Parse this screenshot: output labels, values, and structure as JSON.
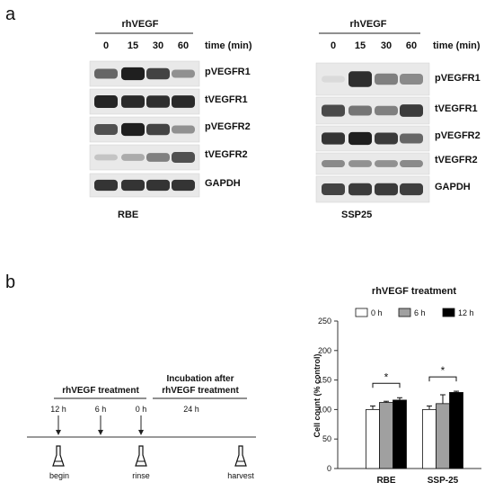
{
  "panel_a": {
    "label": "a",
    "blots": [
      {
        "treatment": "rhVEGF",
        "times": [
          "0",
          "15",
          "30",
          "60"
        ],
        "time_label": "time (min)",
        "cell_line": "RBE",
        "rows": [
          {
            "label": "pVEGFR1",
            "intensity": [
              0.62,
              0.95,
              0.78,
              0.42
            ]
          },
          {
            "label": "tVEGFR1",
            "intensity": [
              0.92,
              0.9,
              0.88,
              0.9
            ]
          },
          {
            "label": "pVEGFR2",
            "intensity": [
              0.72,
              0.95,
              0.78,
              0.42
            ]
          },
          {
            "label": "tVEGFR2",
            "intensity": [
              0.18,
              0.3,
              0.5,
              0.72
            ]
          },
          {
            "label": "GAPDH",
            "intensity": [
              0.85,
              0.85,
              0.85,
              0.85
            ]
          }
        ]
      },
      {
        "treatment": "rhVEGF",
        "times": [
          "0",
          "15",
          "30",
          "60"
        ],
        "time_label": "time (min)",
        "cell_line": "SSP25",
        "rows": [
          {
            "label": "pVEGFR1",
            "intensity": [
              0.08,
              0.88,
              0.5,
              0.45
            ]
          },
          {
            "label": "tVEGFR1",
            "intensity": [
              0.75,
              0.55,
              0.5,
              0.82
            ]
          },
          {
            "label": "pVEGFR2",
            "intensity": [
              0.85,
              0.95,
              0.82,
              0.62
            ]
          },
          {
            "label": "tVEGFR2",
            "intensity": [
              0.45,
              0.42,
              0.42,
              0.45
            ]
          },
          {
            "label": "GAPDH",
            "intensity": [
              0.78,
              0.82,
              0.82,
              0.8
            ]
          }
        ]
      }
    ]
  },
  "panel_b": {
    "label": "b",
    "timeline": {
      "treatment_header": "rhVEGF treatment",
      "incubation_header_line1": "Incubation after",
      "incubation_header_line2": "rhVEGF treatment",
      "time_marks": [
        "12 h",
        "6 h",
        "0 h",
        "24 h"
      ],
      "events": [
        "begin",
        "rinse",
        "harvest"
      ]
    },
    "chart_title": "rhVEGF treatment"
  },
  "chart_data": {
    "type": "bar",
    "title": "rhVEGF treatment",
    "xlabel": "",
    "ylabel": "Cell count (% control)",
    "ylim": [
      0,
      250
    ],
    "yticks": [
      "0",
      "50",
      "100",
      "150",
      "200",
      "250"
    ],
    "categories": [
      "RBE",
      "SSP-25"
    ],
    "series": [
      {
        "name": "0 h",
        "values": [
          100,
          100
        ],
        "errors": [
          6,
          6
        ],
        "color": "#ffffff"
      },
      {
        "name": "6 h",
        "values": [
          112,
          110
        ],
        "errors": [
          2,
          15
        ],
        "color": "#a0a0a0"
      },
      {
        "name": "12 h",
        "values": [
          116,
          129
        ],
        "errors": [
          4,
          2
        ],
        "color": "#000000"
      }
    ],
    "annotations": [
      "*",
      "*"
    ],
    "legend_position": "top"
  }
}
